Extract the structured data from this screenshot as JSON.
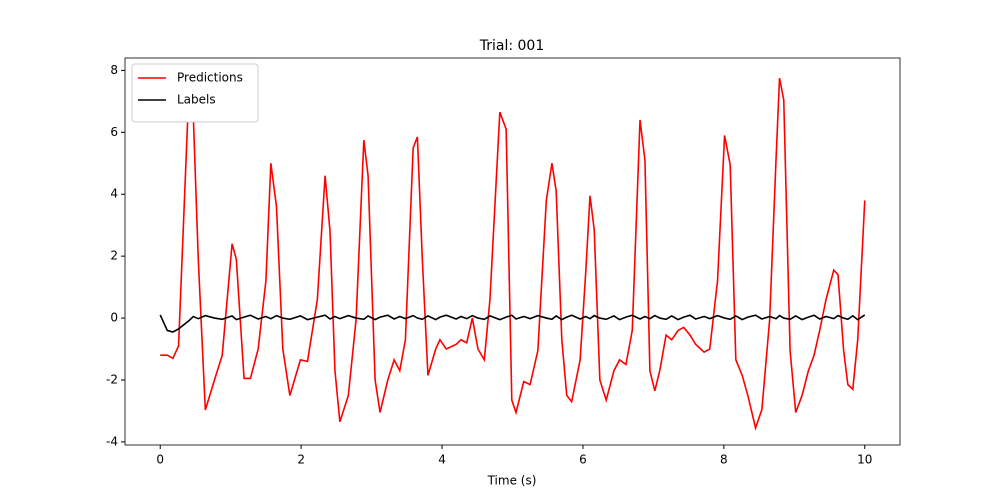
{
  "chart_data": {
    "type": "line",
    "title": "Trial: 001",
    "x_label": "Time (s)",
    "x": [
      0,
      0.1,
      0.18,
      0.26,
      0.4,
      0.47,
      0.54,
      0.64,
      0.77,
      0.88,
      1.02,
      1.08,
      1.19,
      1.28,
      1.39,
      1.5,
      1.57,
      1.65,
      1.74,
      1.84,
      1.99,
      2.09,
      2.23,
      2.34,
      2.41,
      2.48,
      2.55,
      2.67,
      2.78,
      2.89,
      2.95,
      3.05,
      3.12,
      3.23,
      3.32,
      3.4,
      3.48,
      3.59,
      3.65,
      3.72,
      3.8,
      3.91,
      3.97,
      4.06,
      4.2,
      4.27,
      4.35,
      4.43,
      4.51,
      4.6,
      4.68,
      4.82,
      4.91,
      4.99,
      5.05,
      5.16,
      5.25,
      5.36,
      5.48,
      5.56,
      5.62,
      5.7,
      5.77,
      5.84,
      5.96,
      6.04,
      6.1,
      6.16,
      6.24,
      6.33,
      6.44,
      6.52,
      6.61,
      6.7,
      6.81,
      6.88,
      6.95,
      7.02,
      7.09,
      7.18,
      7.26,
      7.35,
      7.43,
      7.52,
      7.6,
      7.72,
      7.8,
      7.91,
      8.01,
      8.09,
      8.17,
      8.26,
      8.34,
      8.45,
      8.54,
      8.65,
      8.74,
      8.79,
      8.85,
      8.94,
      9.02,
      9.11,
      9.2,
      9.28,
      9.36,
      9.45,
      9.56,
      9.62,
      9.7,
      9.76,
      9.83,
      9.9,
      10.0
    ],
    "series": [
      {
        "name": "Predictions",
        "color": "#ff0000",
        "values": [
          -1.2,
          -1.2,
          -1.3,
          -0.9,
          7.0,
          6.5,
          1.9,
          -2.97,
          -2.0,
          -1.2,
          2.4,
          1.9,
          -1.95,
          -1.95,
          -1.0,
          1.2,
          5.0,
          3.6,
          -1.0,
          -2.5,
          -1.35,
          -1.4,
          0.6,
          4.6,
          2.8,
          -1.7,
          -3.35,
          -2.5,
          -0.05,
          5.75,
          4.6,
          -2.0,
          -3.05,
          -2.0,
          -1.35,
          -1.7,
          -0.7,
          5.5,
          5.85,
          1.9,
          -1.85,
          -1.0,
          -0.7,
          -1.0,
          -0.85,
          -0.7,
          -0.8,
          0.0,
          -1.0,
          -1.35,
          0.6,
          6.65,
          6.1,
          -2.65,
          -3.05,
          -2.05,
          -2.15,
          -1.05,
          3.8,
          5.0,
          4.1,
          -0.7,
          -2.5,
          -2.7,
          -1.35,
          1.5,
          3.95,
          2.85,
          -2.0,
          -2.65,
          -1.7,
          -1.35,
          -1.5,
          -0.4,
          6.4,
          5.1,
          -1.7,
          -2.35,
          -1.7,
          -0.55,
          -0.7,
          -0.4,
          -0.3,
          -0.55,
          -0.85,
          -1.1,
          -1.0,
          1.2,
          5.9,
          4.95,
          -1.35,
          -1.85,
          -2.5,
          -3.55,
          -2.95,
          -0.05,
          5.1,
          7.75,
          7.05,
          -1.05,
          -3.05,
          -2.5,
          -1.7,
          -1.2,
          -0.4,
          0.6,
          1.55,
          1.4,
          -1.05,
          -2.15,
          -2.3,
          -0.7,
          3.8
        ]
      },
      {
        "name": "Labels",
        "color": "#000000",
        "values": [
          0.1,
          -0.4,
          -0.45,
          -0.35,
          -0.1,
          0.05,
          -0.02,
          0.08,
          0.0,
          -0.04,
          0.07,
          -0.05,
          0.03,
          0.09,
          -0.03,
          0.05,
          -0.02,
          0.08,
          0.0,
          -0.04,
          0.07,
          -0.05,
          0.03,
          0.09,
          -0.03,
          0.05,
          -0.02,
          0.08,
          0.0,
          -0.04,
          0.07,
          -0.05,
          0.03,
          0.09,
          -0.03,
          0.05,
          -0.02,
          0.08,
          0.0,
          -0.04,
          0.07,
          -0.05,
          0.03,
          0.09,
          -0.03,
          0.05,
          -0.02,
          0.08,
          0.0,
          -0.04,
          0.07,
          -0.05,
          0.03,
          0.09,
          -0.03,
          0.05,
          -0.02,
          0.08,
          0.0,
          -0.04,
          0.07,
          -0.05,
          0.03,
          0.09,
          -0.03,
          0.05,
          -0.02,
          0.08,
          0.0,
          -0.04,
          0.07,
          -0.05,
          0.03,
          0.09,
          -0.03,
          0.05,
          -0.02,
          0.08,
          0.0,
          -0.04,
          0.07,
          -0.05,
          0.03,
          0.09,
          -0.03,
          0.05,
          -0.02,
          0.08,
          0.0,
          -0.04,
          0.07,
          -0.05,
          0.03,
          0.09,
          -0.03,
          0.05,
          -0.02,
          0.08,
          0.0,
          -0.04,
          0.07,
          -0.05,
          0.03,
          0.09,
          -0.03,
          0.05,
          -0.02,
          0.08,
          0.0,
          -0.04,
          0.07,
          -0.05,
          0.1
        ]
      }
    ],
    "xlim": [
      -0.5,
      10.5
    ],
    "xticks": [
      0,
      2,
      4,
      6,
      8,
      10
    ],
    "ylim": [
      -4.1,
      8.4
    ],
    "yticks": [
      -4,
      -2,
      0,
      2,
      4,
      6,
      8
    ],
    "legend": "upper left",
    "grid": false
  }
}
